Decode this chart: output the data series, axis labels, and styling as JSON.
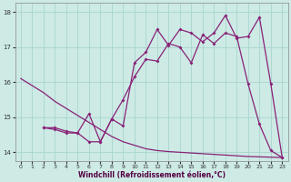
{
  "xlabel": "Windchill (Refroidissement éolien,°C)",
  "background_color": "#cdeae5",
  "grid_color": "#aad5d0",
  "line_color": "#882277",
  "xlim": [
    -0.5,
    23.5
  ],
  "ylim": [
    13.75,
    18.25
  ],
  "yticks": [
    14,
    15,
    16,
    17,
    18
  ],
  "xticks": [
    0,
    1,
    2,
    3,
    4,
    5,
    6,
    7,
    8,
    9,
    10,
    11,
    12,
    13,
    14,
    15,
    16,
    17,
    18,
    19,
    20,
    21,
    22,
    23
  ],
  "line1_x": [
    0,
    1,
    2,
    3,
    4,
    5,
    6,
    7,
    8,
    9,
    10,
    11,
    12,
    13,
    14,
    15,
    16,
    17,
    18,
    19,
    20,
    21,
    22,
    23
  ],
  "line1_y": [
    16.1,
    15.9,
    15.7,
    15.45,
    15.25,
    15.05,
    14.85,
    14.65,
    14.45,
    14.3,
    14.2,
    14.1,
    14.05,
    14.02,
    14.0,
    13.98,
    13.96,
    13.94,
    13.92,
    13.9,
    13.88,
    13.87,
    13.86,
    13.85
  ],
  "line2_x": [
    2,
    3,
    4,
    5,
    6,
    7,
    8,
    9,
    10,
    11,
    12,
    13,
    14,
    15,
    16,
    17,
    18,
    19,
    20,
    21,
    22,
    23
  ],
  "line2_y": [
    14.7,
    14.7,
    14.6,
    14.55,
    15.1,
    14.3,
    14.95,
    15.5,
    16.15,
    16.65,
    16.6,
    17.1,
    17.0,
    16.55,
    17.35,
    17.1,
    17.4,
    17.3,
    15.95,
    14.8,
    14.05,
    13.85
  ],
  "line3_x": [
    2,
    3,
    4,
    5,
    6,
    7,
    8,
    9,
    10,
    11,
    12,
    13,
    14,
    15,
    16,
    17,
    18,
    19,
    20,
    21,
    22,
    23
  ],
  "line3_y": [
    14.7,
    14.65,
    14.55,
    14.55,
    14.3,
    14.3,
    14.95,
    14.75,
    16.55,
    16.85,
    17.5,
    17.05,
    17.5,
    17.4,
    17.15,
    17.4,
    17.9,
    17.25,
    17.3,
    17.85,
    15.95,
    13.85
  ],
  "marker": "D",
  "markersize": 2.0,
  "linewidth": 0.9
}
